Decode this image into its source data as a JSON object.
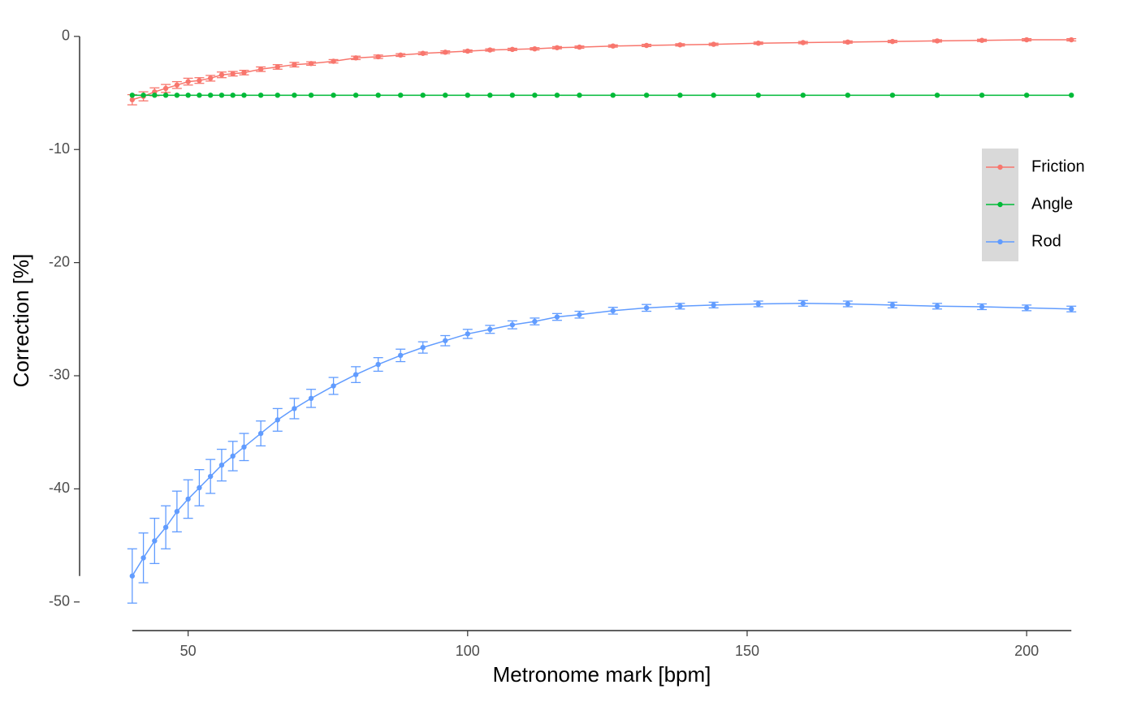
{
  "chart_data": {
    "type": "line",
    "x_label": "Metronome mark [bpm]",
    "y_label": "Correction [%]",
    "x": [
      40,
      42,
      44,
      46,
      48,
      50,
      52,
      54,
      56,
      58,
      60,
      63,
      66,
      69,
      72,
      76,
      80,
      84,
      88,
      92,
      96,
      100,
      104,
      108,
      112,
      116,
      120,
      126,
      132,
      138,
      144,
      152,
      160,
      168,
      176,
      184,
      192,
      200,
      208
    ],
    "series": [
      {
        "name": "Friction",
        "color": "#F8766D",
        "values": [
          -5.6,
          -5.3,
          -4.9,
          -4.6,
          -4.3,
          -4.0,
          -3.9,
          -3.7,
          -3.4,
          -3.3,
          -3.2,
          -2.9,
          -2.7,
          -2.5,
          -2.4,
          -2.2,
          -1.9,
          -1.8,
          -1.65,
          -1.5,
          -1.4,
          -1.3,
          -1.2,
          -1.15,
          -1.1,
          -1.0,
          -0.95,
          -0.85,
          -0.8,
          -0.75,
          -0.7,
          -0.6,
          -0.55,
          -0.5,
          -0.45,
          -0.4,
          -0.35,
          -0.3,
          -0.3
        ],
        "errors": [
          0.45,
          0.4,
          0.35,
          0.35,
          0.3,
          0.3,
          0.25,
          0.25,
          0.25,
          0.2,
          0.2,
          0.2,
          0.2,
          0.2,
          0.15,
          0.15,
          0.15,
          0.15,
          0.12,
          0.12,
          0.12,
          0.1,
          0.1,
          0.1,
          0.1,
          0.1,
          0.1,
          0.1,
          0.1,
          0.1,
          0.1,
          0.1,
          0.1,
          0.1,
          0.1,
          0.1,
          0.1,
          0.1,
          0.1
        ]
      },
      {
        "name": "Angle",
        "color": "#00BA38",
        "values": [
          -5.2,
          -5.2,
          -5.2,
          -5.2,
          -5.2,
          -5.2,
          -5.2,
          -5.2,
          -5.2,
          -5.2,
          -5.2,
          -5.2,
          -5.2,
          -5.2,
          -5.2,
          -5.2,
          -5.2,
          -5.2,
          -5.2,
          -5.2,
          -5.2,
          -5.2,
          -5.2,
          -5.2,
          -5.2,
          -5.2,
          -5.2,
          -5.2,
          -5.2,
          -5.2,
          -5.2,
          -5.2,
          -5.2,
          -5.2,
          -5.2,
          -5.2,
          -5.2,
          -5.2,
          -5.2
        ]
      },
      {
        "name": "Rod",
        "color": "#619CFF",
        "values": [
          -47.7,
          -46.1,
          -44.6,
          -43.4,
          -42.0,
          -40.9,
          -39.9,
          -38.9,
          -37.9,
          -37.1,
          -36.3,
          -35.1,
          -33.9,
          -32.9,
          -32.0,
          -30.9,
          -29.9,
          -29.0,
          -28.2,
          -27.5,
          -26.9,
          -26.3,
          -25.9,
          -25.5,
          -25.2,
          -24.8,
          -24.6,
          -24.25,
          -24.0,
          -23.85,
          -23.75,
          -23.65,
          -23.6,
          -23.65,
          -23.75,
          -23.85,
          -23.9,
          -24.0,
          -24.1
        ],
        "errors": [
          2.4,
          2.2,
          2.0,
          1.9,
          1.8,
          1.7,
          1.6,
          1.5,
          1.4,
          1.3,
          1.2,
          1.1,
          1.0,
          0.9,
          0.8,
          0.75,
          0.7,
          0.6,
          0.55,
          0.5,
          0.45,
          0.4,
          0.35,
          0.35,
          0.3,
          0.3,
          0.3,
          0.3,
          0.3,
          0.25,
          0.25,
          0.25,
          0.25,
          0.25,
          0.25,
          0.25,
          0.25,
          0.25,
          0.25
        ]
      }
    ],
    "xlim": [
      31.6,
      216.4
    ],
    "ylim": [
      -52.6,
      2.5
    ],
    "xticks": [
      50,
      100,
      150,
      200
    ],
    "yticks": [
      0,
      -10,
      -20,
      -30,
      -40,
      -50
    ],
    "legend": "right",
    "grid": false
  }
}
